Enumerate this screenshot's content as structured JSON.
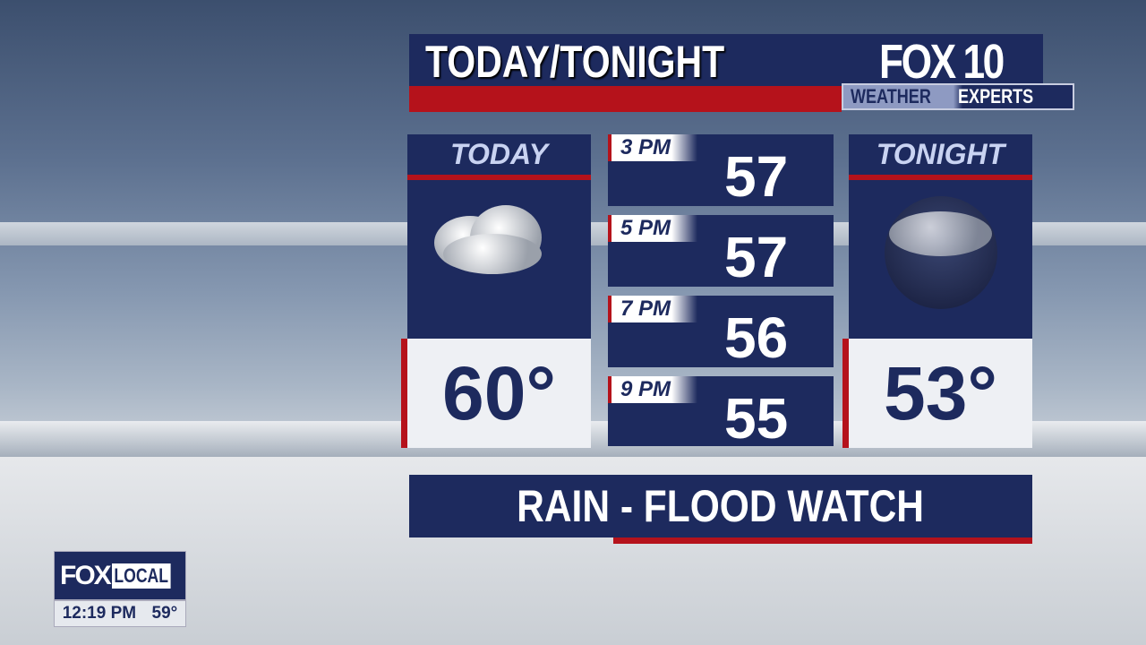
{
  "header": {
    "title": "TODAY/TONIGHT",
    "logo": "FOX 10",
    "tagline_left": "WEATHER",
    "tagline_right": "EXPERTS"
  },
  "today": {
    "label": "TODAY",
    "temp": "60°",
    "icon": "rain-cloud-icon"
  },
  "tonight": {
    "label": "TONIGHT",
    "temp": "53°",
    "icon": "night-rain-cloud-icon"
  },
  "hourly": [
    {
      "time": "3 PM",
      "temp": "57"
    },
    {
      "time": "5 PM",
      "temp": "57"
    },
    {
      "time": "7 PM",
      "temp": "56"
    },
    {
      "time": "9 PM",
      "temp": "55"
    }
  ],
  "banner": "RAIN - FLOOD WATCH",
  "bug": {
    "logo_fox": "FOX",
    "logo_local": "LOCAL",
    "time": "12:19 PM",
    "temp": "59°"
  },
  "colors": {
    "navy": "#1d2a5e",
    "red": "#b5121b"
  }
}
